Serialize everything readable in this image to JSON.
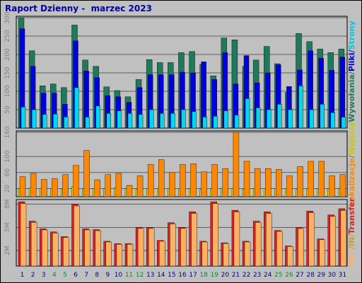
{
  "title": "Raport Dzienny -  marzec 2023",
  "colors": {
    "background": "#c0c0c0",
    "title": "#0000a8",
    "hits": "#1e7a5a",
    "files": "#0000dd",
    "pages": "#00d8f0",
    "visits": "#ff8800",
    "sites": "#dcdc00",
    "kbytes": "#dd2222",
    "in": "#c8a040",
    "out": "#ffb060",
    "weekend": "#0a8a3a",
    "weekday": "#000080"
  },
  "side_labels": {
    "top": [
      {
        "text": "Wywołania",
        "color": "#1e7a5a"
      },
      {
        "text": "/",
        "color": "#1e7a5a"
      },
      {
        "text": "Pliki",
        "color": "#0000dd"
      },
      {
        "text": "/",
        "color": "#0000dd"
      },
      {
        "text": "Strony",
        "color": "#00c8e0"
      }
    ],
    "middle": [
      {
        "text": "Lokalizacje",
        "color": "#ff8800"
      },
      {
        "text": "/",
        "color": "#808080"
      },
      {
        "text": "Wejścia",
        "color": "#c8c800"
      }
    ],
    "bottom": [
      {
        "text": "OUT",
        "color": "#ffb060"
      },
      {
        "text": "/",
        "color": "#c8a040"
      },
      {
        "text": "IN",
        "color": "#c8a040"
      },
      {
        "text": "/",
        "color": "#c8a040"
      },
      {
        "text": "Transfer",
        "color": "#dd2222"
      }
    ]
  },
  "chart_data": [
    {
      "type": "bar",
      "panel": "hits-files-pages",
      "x": [
        1,
        2,
        3,
        4,
        5,
        6,
        7,
        8,
        9,
        10,
        11,
        12,
        13,
        14,
        15,
        16,
        17,
        18,
        19,
        20,
        21,
        22,
        23,
        24,
        25,
        26,
        27,
        28,
        29,
        30,
        31
      ],
      "weekend_days": [
        4,
        5,
        11,
        12,
        18,
        19,
        25,
        26
      ],
      "yticks": [
        50,
        100,
        150,
        200,
        250,
        300
      ],
      "ylim": [
        0,
        300
      ],
      "series": [
        {
          "name": "Wywołania",
          "values": [
            300,
            210,
            115,
            120,
            110,
            280,
            185,
            168,
            112,
            102,
            85,
            132,
            186,
            178,
            178,
            205,
            208,
            173,
            142,
            245,
            240,
            168,
            185,
            222,
            175,
            97,
            257,
            235,
            215,
            205,
            215
          ]
        },
        {
          "name": "Pliki",
          "values": [
            270,
            168,
            95,
            95,
            65,
            237,
            155,
            137,
            88,
            85,
            70,
            110,
            145,
            145,
            145,
            152,
            150,
            180,
            132,
            205,
            120,
            197,
            123,
            150,
            172,
            113,
            158,
            210,
            190,
            157,
            193
          ]
        },
        {
          "name": "Strony",
          "values": [
            57,
            50,
            37,
            38,
            30,
            110,
            30,
            60,
            40,
            47,
            40,
            37,
            50,
            40,
            40,
            50,
            45,
            30,
            32,
            47,
            35,
            80,
            55,
            50,
            65,
            50,
            115,
            50,
            65,
            42,
            30
          ]
        }
      ]
    },
    {
      "type": "bar",
      "panel": "visits-sites",
      "x": [
        1,
        2,
        3,
        4,
        5,
        6,
        7,
        8,
        9,
        10,
        11,
        12,
        13,
        14,
        15,
        16,
        17,
        18,
        19,
        20,
        21,
        22,
        23,
        24,
        25,
        26,
        27,
        28,
        29,
        30,
        31
      ],
      "yticks": [
        20,
        60,
        100,
        160
      ],
      "ylim": [
        0,
        160
      ],
      "series": [
        {
          "name": "Wejścia",
          "values": [
            20,
            22,
            20,
            20,
            18,
            25,
            18,
            20,
            20,
            22,
            20,
            18,
            20,
            20,
            20,
            20,
            20,
            18,
            20,
            20,
            20,
            18,
            20,
            20,
            20,
            20,
            18,
            20,
            20,
            20,
            20
          ]
        },
        {
          "name": "Lokalizacje",
          "values": [
            50,
            58,
            43,
            45,
            55,
            78,
            115,
            42,
            55,
            58,
            28,
            52,
            80,
            92,
            60,
            80,
            82,
            62,
            80,
            70,
            160,
            88,
            70,
            70,
            68,
            52,
            75,
            88,
            88,
            52,
            55
          ]
        }
      ]
    },
    {
      "type": "bar",
      "panel": "transfer",
      "x": [
        1,
        2,
        3,
        4,
        5,
        6,
        7,
        8,
        9,
        10,
        11,
        12,
        13,
        14,
        15,
        16,
        17,
        18,
        19,
        20,
        21,
        22,
        23,
        24,
        25,
        26,
        27,
        28,
        29,
        30,
        31
      ],
      "yticks": [
        "2M",
        "5M",
        "8M"
      ],
      "ylim": [
        0,
        8.4
      ],
      "series": [
        {
          "name": "Transfer",
          "values": [
            8.3,
            5.8,
            4.8,
            4.4,
            3.8,
            8.0,
            4.8,
            4.7,
            3.2,
            2.9,
            2.9,
            5.0,
            5.0,
            3.3,
            5.6,
            5.0,
            7.0,
            3.2,
            8.3,
            3.0,
            7.2,
            3.2,
            5.8,
            7.0,
            4.6,
            2.6,
            5.0,
            7.1,
            3.5,
            6.6,
            7.4
          ]
        }
      ]
    }
  ]
}
